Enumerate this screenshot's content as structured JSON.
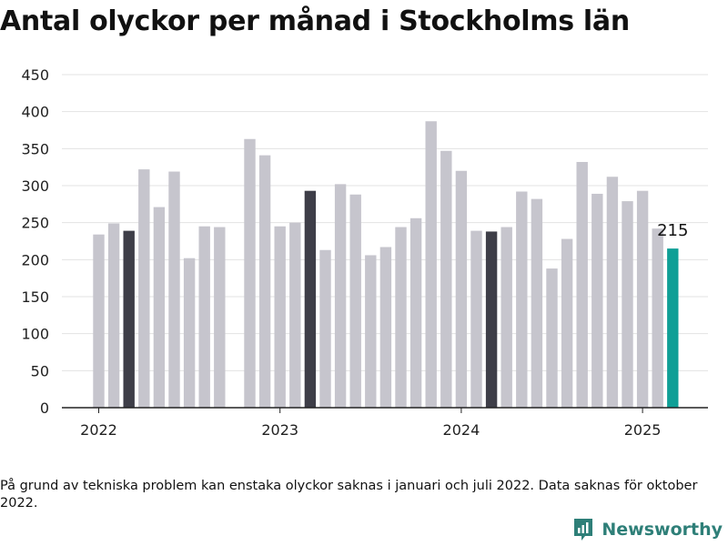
{
  "chart_data": {
    "type": "bar",
    "title": "Antal olyckor per månad i Stockholms län",
    "xlabel": "",
    "ylabel": "",
    "ylim": [
      0,
      450
    ],
    "yticks": [
      0,
      50,
      100,
      150,
      200,
      250,
      300,
      350,
      400,
      450
    ],
    "x_tick_labels": [
      "2022",
      "2023",
      "2024",
      "2025"
    ],
    "grid": true,
    "legend": "none",
    "categories": [
      "2022-01",
      "2022-02",
      "2022-03",
      "2022-04",
      "2022-05",
      "2022-06",
      "2022-07",
      "2022-08",
      "2022-09",
      "2022-10",
      "2022-11",
      "2022-12",
      "2023-01",
      "2023-02",
      "2023-03",
      "2023-04",
      "2023-05",
      "2023-06",
      "2023-07",
      "2023-08",
      "2023-09",
      "2023-10",
      "2023-11",
      "2023-12",
      "2024-01",
      "2024-02",
      "2024-03",
      "2024-04",
      "2024-05",
      "2024-06",
      "2024-07",
      "2024-08",
      "2024-09",
      "2024-10",
      "2024-11",
      "2024-12",
      "2025-01",
      "2025-02",
      "2025-03"
    ],
    "values": [
      234,
      249,
      239,
      322,
      271,
      319,
      202,
      245,
      244,
      null,
      363,
      341,
      245,
      250,
      293,
      213,
      302,
      288,
      206,
      217,
      244,
      256,
      387,
      347,
      320,
      239,
      238,
      244,
      292,
      282,
      188,
      228,
      332,
      289,
      312,
      279,
      293,
      242,
      215
    ],
    "highlighted": [
      "2022-03",
      "2023-03",
      "2024-03"
    ],
    "latest_label": "215",
    "colors": {
      "bar": "#c6c5cd",
      "highlight": "#3e3e48",
      "latest": "#0f9f96",
      "grid": "#e3e3e3",
      "axis": "#222222"
    }
  },
  "footnote": "På grund av tekniska problem kan enstaka olyckor saknas i januari och juli 2022. Data saknas för oktober 2022.",
  "brand": {
    "name": "Newsworthy",
    "icon": "newsworthy-logo-icon",
    "color": "#2e7f78"
  }
}
